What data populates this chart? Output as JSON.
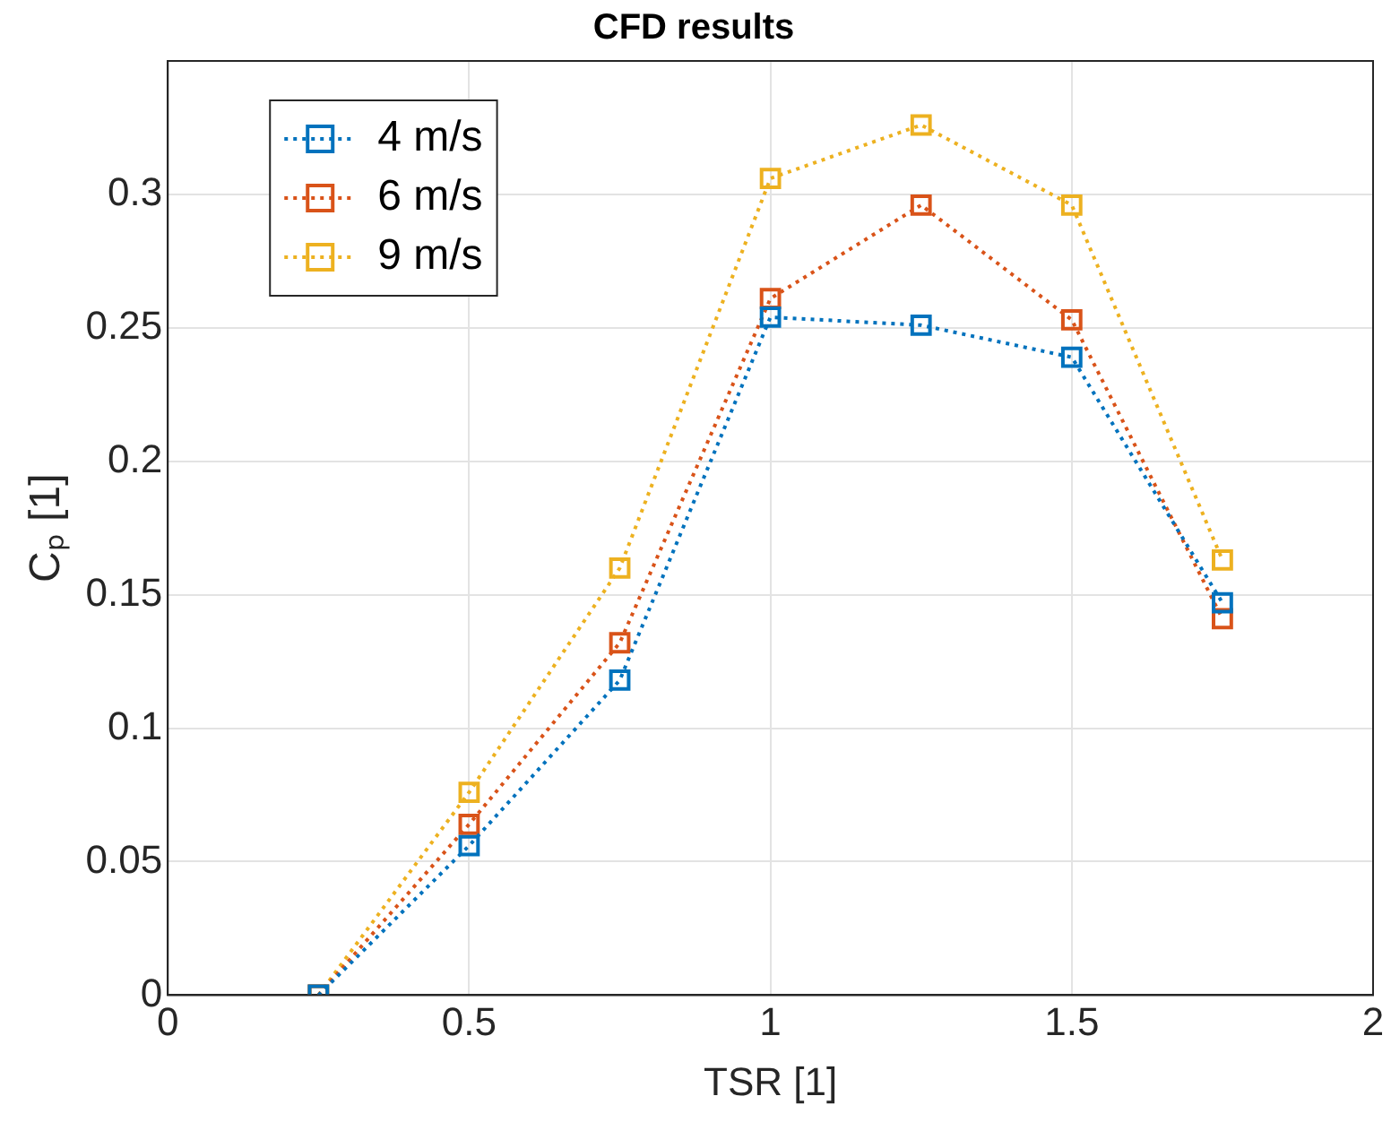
{
  "chart_data": {
    "type": "line",
    "title": "CFD results",
    "xlabel": "TSR [1]",
    "ylabel": "Cₚ [1]",
    "x": [
      0.25,
      0.5,
      0.75,
      1,
      1.25,
      1.5,
      1.75
    ],
    "series": [
      {
        "name": "4 m/s",
        "color": "#0072bd",
        "values": [
          0,
          0.056,
          0.118,
          0.254,
          0.251,
          0.239,
          0.147
        ]
      },
      {
        "name": "6 m/s",
        "color": "#d95319",
        "values": [
          0,
          0.064,
          0.132,
          0.261,
          0.296,
          0.253,
          0.141
        ]
      },
      {
        "name": "9 m/s",
        "color": "#edb120",
        "values": [
          0,
          0.076,
          0.16,
          0.306,
          0.326,
          0.296,
          0.163
        ]
      }
    ],
    "xlim": [
      0,
      2
    ],
    "xticks": [
      0,
      0.5,
      1,
      1.5,
      2
    ],
    "ylim": [
      0,
      0.35
    ],
    "yticks": [
      0,
      0.05,
      0.1,
      0.15,
      0.2,
      0.25,
      0.3
    ],
    "grid": true,
    "legend": "top left",
    "marker": "square",
    "line_style": "dotted"
  }
}
